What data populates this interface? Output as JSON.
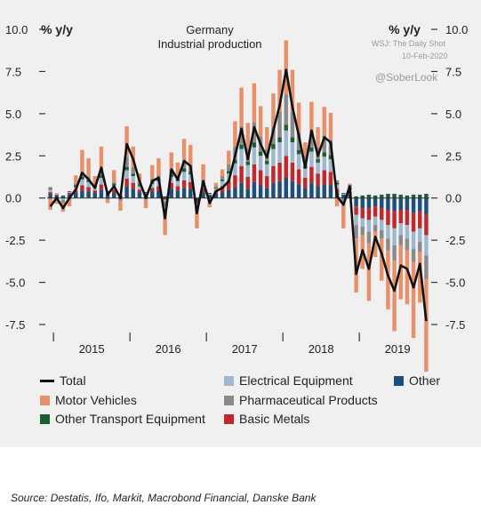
{
  "watermarks": {
    "wsj": "WSJ: The Daily Shot",
    "date": "10-Feb-2020",
    "handle": "@SoberLook"
  },
  "source": "Source: Destatis, Ifo, Markit, Macrobond Financial, Danske Bank",
  "chart_data": {
    "type": "bar",
    "title": "Germany",
    "subtitle": "Industrial production",
    "ylabel_left": "% y/y",
    "ylabel_right": "% y/y",
    "ylim": [
      -7.5,
      10.0
    ],
    "yticks": [
      "10.0",
      "7.5",
      "5.0",
      "2.5",
      "0.0",
      "-2.5",
      "-5.0",
      "-7.5"
    ],
    "ytick_values": [
      10.0,
      7.5,
      5.0,
      2.5,
      0.0,
      -2.5,
      -5.0,
      -7.5
    ],
    "year_labels": [
      "2015",
      "2016",
      "2017",
      "2018",
      "2019"
    ],
    "grid": false,
    "legend_position": "bottom",
    "colors": {
      "Other": "#1f4e79",
      "Basic Metals": "#c0292b",
      "Electrical Equipment": "#9fb8cf",
      "Other Transport Equipment": "#1c5e34",
      "Pharmaceutical Products": "#8a8a8a",
      "Motor Vehicles": "#e8906a",
      "Total": "#111111"
    },
    "legend": [
      {
        "label": "Total",
        "kind": "line",
        "color": "#111111"
      },
      {
        "label": "Electrical Equipment",
        "kind": "box",
        "color": "#9fb8cf"
      },
      {
        "label": "Other",
        "kind": "box",
        "color": "#1f4e79"
      },
      {
        "label": "Motor Vehicles",
        "kind": "box",
        "color": "#e8906a"
      },
      {
        "label": "Pharmaceutical Products",
        "kind": "box",
        "color": "#8a8a8a"
      },
      {
        "label": "Other Transport Equipment",
        "kind": "box",
        "color": "#1c5e34"
      },
      {
        "label": "Basic Metals",
        "kind": "box",
        "color": "#c0292b"
      }
    ],
    "x_start": "2014-12",
    "x_end": "2019-12",
    "series": [
      {
        "name": "Total",
        "values": [
          -0.5,
          0.0,
          -0.6,
          0.0,
          0.5,
          1.5,
          1.1,
          0.6,
          1.8,
          0.2,
          0.7,
          0.0,
          3.2,
          2.3,
          1.0,
          0.0,
          1.0,
          1.2,
          -1.2,
          1.7,
          1.1,
          2.2,
          1.9,
          -0.9,
          1.0,
          -0.3,
          0.4,
          0.6,
          1.0,
          2.5,
          4.1,
          2.3,
          4.2,
          3.2,
          2.4,
          4.0,
          5.5,
          7.6,
          5.4,
          3.7,
          1.8,
          4.0,
          2.5,
          3.6,
          3.3,
          0.1,
          -0.4,
          0.7,
          -4.5,
          -3.1,
          -4.2,
          -2.3,
          -3.3,
          -4.6,
          -5.5,
          -4.0,
          -4.2,
          -5.3,
          -3.9,
          -7.3
        ]
      },
      {
        "name": "Other",
        "values": [
          0.25,
          0.15,
          0.1,
          0.2,
          0.3,
          0.45,
          0.4,
          0.3,
          0.5,
          0.2,
          0.3,
          0.15,
          0.7,
          0.55,
          0.35,
          0.2,
          0.4,
          0.45,
          0.1,
          0.55,
          0.45,
          0.6,
          0.55,
          -0.2,
          0.35,
          0.15,
          0.25,
          0.35,
          0.5,
          0.65,
          0.9,
          0.55,
          0.95,
          0.75,
          0.6,
          0.9,
          1.0,
          1.2,
          1.0,
          0.8,
          0.6,
          0.9,
          0.7,
          0.8,
          0.75,
          0.35,
          0.2,
          0.2,
          -0.5,
          -0.6,
          -0.6,
          -0.5,
          -0.6,
          -0.7,
          -0.8,
          -0.7,
          -0.7,
          -0.9,
          -0.8,
          -1.0
        ]
      },
      {
        "name": "Basic Metals",
        "values": [
          0.1,
          0.05,
          0.0,
          0.1,
          0.15,
          0.3,
          0.25,
          0.15,
          0.3,
          0.05,
          0.2,
          0.0,
          0.45,
          0.35,
          0.15,
          0.05,
          0.2,
          0.25,
          -0.1,
          0.35,
          0.25,
          0.45,
          0.4,
          -0.15,
          0.25,
          0.05,
          0.15,
          0.35,
          0.5,
          0.7,
          1.0,
          0.7,
          1.05,
          0.9,
          0.7,
          1.0,
          1.1,
          1.3,
          1.1,
          0.9,
          0.6,
          0.95,
          0.75,
          0.85,
          0.8,
          0.2,
          0.0,
          0.15,
          -0.5,
          -0.6,
          -0.7,
          -0.6,
          -0.7,
          -0.9,
          -1.0,
          -0.8,
          -0.9,
          -1.1,
          -1.0,
          -1.2
        ]
      },
      {
        "name": "Electrical Equipment",
        "values": [
          0.15,
          0.1,
          -0.1,
          0.05,
          0.2,
          0.35,
          0.3,
          0.2,
          0.4,
          0.1,
          0.25,
          0.05,
          0.5,
          0.4,
          0.2,
          0.05,
          0.25,
          0.3,
          -0.1,
          0.35,
          0.3,
          0.5,
          0.45,
          -0.15,
          0.2,
          0.05,
          0.15,
          0.3,
          0.45,
          0.7,
          1.0,
          0.7,
          1.0,
          0.85,
          0.7,
          1.0,
          1.2,
          1.5,
          1.2,
          0.9,
          0.55,
          0.9,
          0.65,
          0.8,
          0.75,
          0.25,
          0.05,
          0.15,
          -0.6,
          -0.5,
          -0.7,
          -0.5,
          -0.6,
          -0.8,
          -1.0,
          -0.7,
          -0.8,
          -1.0,
          -0.8,
          -1.2
        ]
      },
      {
        "name": "Other Transport Equipment",
        "values": [
          0.05,
          0.0,
          0.05,
          0.05,
          0.1,
          0.15,
          0.1,
          0.05,
          0.15,
          0.05,
          0.1,
          0.0,
          0.2,
          0.15,
          0.1,
          0.05,
          0.1,
          0.1,
          0.0,
          0.15,
          0.1,
          0.2,
          0.15,
          0.0,
          0.1,
          0.05,
          0.05,
          0.1,
          0.15,
          0.2,
          0.25,
          0.2,
          0.3,
          0.25,
          0.2,
          0.3,
          0.3,
          0.35,
          0.3,
          0.25,
          0.15,
          0.25,
          0.2,
          0.25,
          0.25,
          0.1,
          0.05,
          0.1,
          0.1,
          0.15,
          0.2,
          0.15,
          0.2,
          0.25,
          0.25,
          0.2,
          0.15,
          0.2,
          0.2,
          0.25
        ]
      },
      {
        "name": "Pharmaceutical Products",
        "values": [
          0.1,
          -0.1,
          -0.2,
          -0.1,
          0.1,
          0.3,
          0.2,
          0.1,
          0.3,
          -0.1,
          0.1,
          -0.15,
          0.6,
          0.4,
          0.15,
          -0.1,
          0.2,
          0.25,
          -0.3,
          0.3,
          0.2,
          0.45,
          0.4,
          -0.3,
          0.2,
          -0.15,
          0.1,
          0.2,
          0.4,
          0.8,
          1.1,
          0.8,
          1.2,
          0.9,
          0.7,
          1.0,
          1.5,
          1.8,
          1.5,
          1.0,
          0.6,
          1.0,
          0.7,
          1.0,
          0.9,
          0.15,
          -0.4,
          0.15,
          -0.8,
          -0.5,
          -0.7,
          -0.4,
          -0.5,
          -0.7,
          -0.9,
          -0.6,
          -0.7,
          -0.8,
          -0.6,
          -1.4
        ]
      },
      {
        "name": "Motor Vehicles",
        "values": [
          -0.7,
          -0.25,
          -0.5,
          -0.4,
          0.5,
          1.3,
          1.1,
          0.5,
          1.4,
          -0.2,
          0.7,
          -0.6,
          1.8,
          1.2,
          0.5,
          -0.5,
          0.8,
          1.0,
          -1.7,
          1.0,
          0.8,
          1.3,
          1.2,
          -1.0,
          0.9,
          -0.4,
          0.2,
          0.4,
          0.8,
          1.5,
          2.3,
          1.5,
          2.3,
          1.8,
          1.3,
          2.0,
          2.5,
          3.2,
          2.5,
          1.8,
          0.8,
          1.7,
          1.2,
          1.7,
          1.6,
          -0.5,
          -1.4,
          0.1,
          -3.2,
          -2.0,
          -3.4,
          -1.5,
          -2.5,
          -3.5,
          -4.2,
          -3.2,
          -3.2,
          -4.5,
          -3.0,
          -5.5
        ]
      }
    ]
  }
}
